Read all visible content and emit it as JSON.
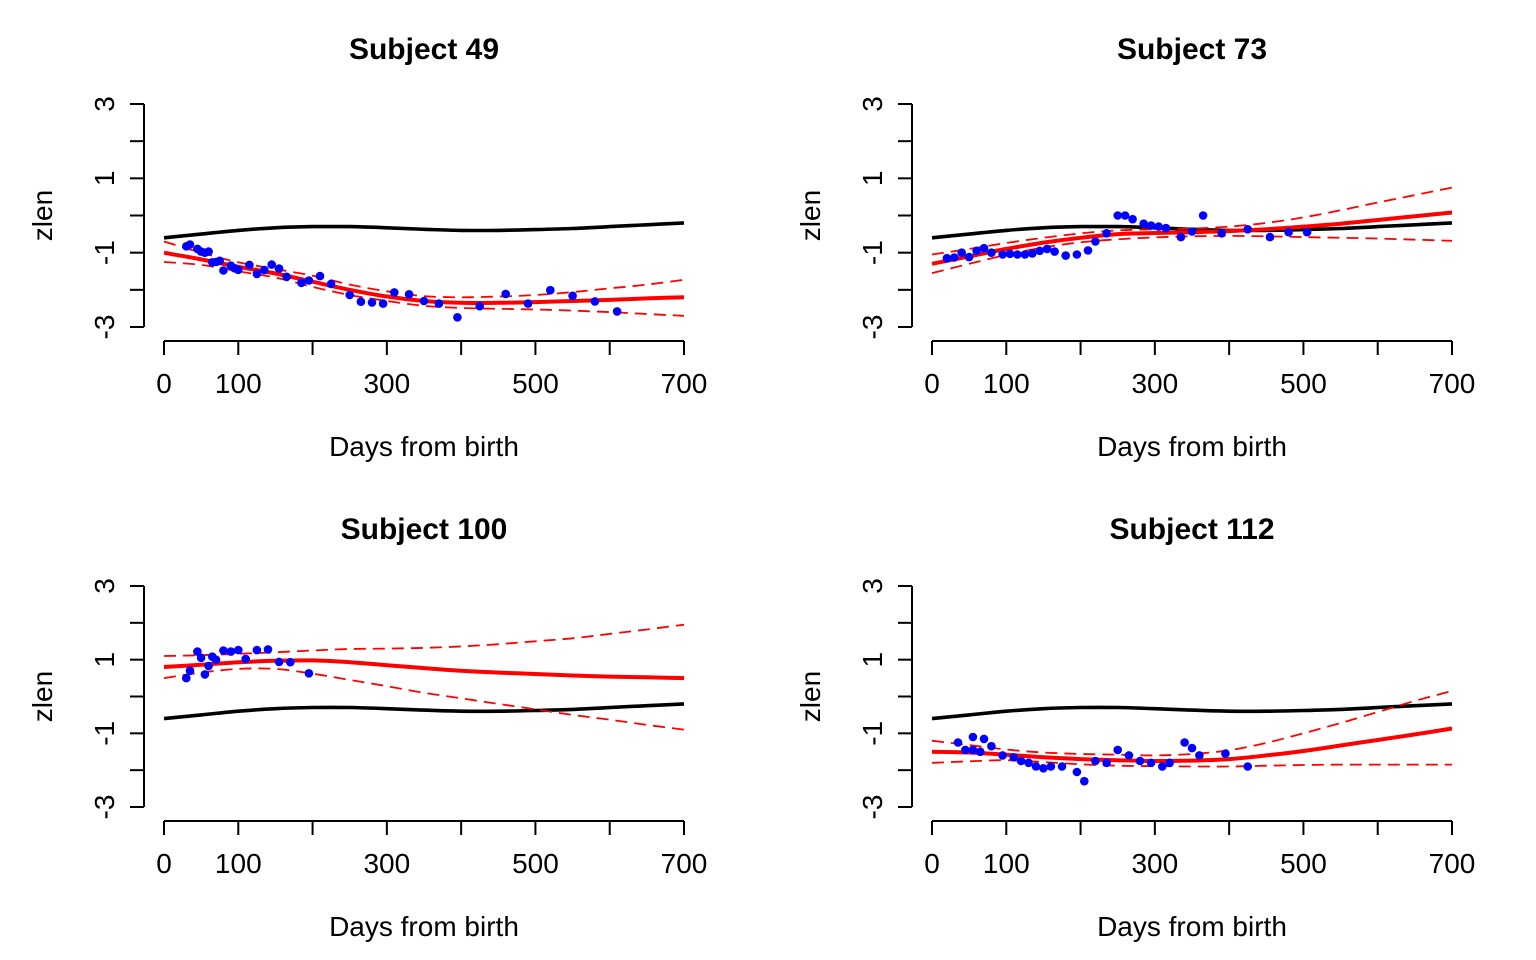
{
  "colors": {
    "reference": "#000000",
    "fit": "#ff0000",
    "band": "#ff0000",
    "points": "#0000ff"
  },
  "axes": {
    "xlabel": "Days from birth",
    "ylabel": "zlen",
    "xlim": [
      0,
      700
    ],
    "ylim": [
      -3,
      3
    ],
    "xticks": [
      0,
      100,
      200,
      300,
      400,
      500,
      600,
      700
    ],
    "xtick_labels": [
      "0",
      "100",
      "",
      "300",
      "",
      "500",
      "",
      "700"
    ],
    "yticks": [
      -3,
      -2,
      -1,
      0,
      1,
      2,
      3
    ],
    "ytick_labels": [
      "-3",
      "",
      "-1",
      "",
      "1",
      "",
      "3"
    ]
  },
  "chart_data": [
    {
      "type": "line",
      "title": "Subject  49",
      "xlabel": "Days from birth",
      "ylabel": "zlen",
      "xlim": [
        0,
        700
      ],
      "ylim": [
        -3,
        3
      ],
      "series": [
        {
          "role": "reference",
          "style": "black-solid",
          "x": [
            0,
            50,
            100,
            150,
            200,
            250,
            300,
            350,
            400,
            450,
            500,
            550,
            600,
            650,
            700
          ],
          "y": [
            -0.6,
            -0.5,
            -0.4,
            -0.33,
            -0.3,
            -0.3,
            -0.33,
            -0.37,
            -0.4,
            -0.4,
            -0.38,
            -0.35,
            -0.3,
            -0.25,
            -0.2
          ]
        },
        {
          "role": "fit",
          "style": "red-thick",
          "x": [
            0,
            50,
            100,
            150,
            200,
            250,
            300,
            350,
            400,
            450,
            500,
            550,
            600,
            650,
            700
          ],
          "y": [
            -1.0,
            -1.18,
            -1.38,
            -1.56,
            -1.78,
            -2.0,
            -2.18,
            -2.3,
            -2.35,
            -2.35,
            -2.33,
            -2.3,
            -2.27,
            -2.23,
            -2.2
          ]
        },
        {
          "role": "band-upper",
          "style": "red-dashed",
          "x": [
            0,
            50,
            100,
            150,
            200,
            250,
            300,
            350,
            400,
            450,
            500,
            550,
            600,
            650,
            700
          ],
          "y": [
            -0.7,
            -1.0,
            -1.26,
            -1.44,
            -1.62,
            -1.86,
            -2.04,
            -2.17,
            -2.2,
            -2.18,
            -2.14,
            -2.06,
            -1.96,
            -1.86,
            -1.73
          ]
        },
        {
          "role": "band-lower",
          "style": "red-dashed",
          "x": [
            0,
            50,
            100,
            150,
            200,
            250,
            300,
            350,
            400,
            450,
            500,
            550,
            600,
            650,
            700
          ],
          "y": [
            -1.25,
            -1.33,
            -1.5,
            -1.67,
            -1.92,
            -2.14,
            -2.3,
            -2.43,
            -2.49,
            -2.51,
            -2.53,
            -2.56,
            -2.6,
            -2.65,
            -2.7
          ]
        }
      ],
      "points": {
        "x": [
          30,
          35,
          45,
          50,
          55,
          60,
          65,
          70,
          75,
          80,
          90,
          95,
          100,
          115,
          125,
          135,
          145,
          155,
          165,
          185,
          195,
          210,
          225,
          250,
          265,
          280,
          295,
          310,
          330,
          350,
          370,
          395,
          425,
          460,
          490,
          520,
          550,
          580,
          610
        ],
        "y": [
          -0.83,
          -0.78,
          -0.9,
          -0.97,
          -1.0,
          -0.97,
          -1.26,
          -1.25,
          -1.22,
          -1.48,
          -1.35,
          -1.42,
          -1.46,
          -1.33,
          -1.57,
          -1.47,
          -1.32,
          -1.43,
          -1.65,
          -1.81,
          -1.75,
          -1.63,
          -1.84,
          -2.14,
          -2.32,
          -2.34,
          -2.37,
          -2.07,
          -2.12,
          -2.3,
          -2.37,
          -2.74,
          -2.44,
          -2.11,
          -2.37,
          -2.01,
          -2.16,
          -2.31,
          -2.58
        ]
      }
    },
    {
      "type": "line",
      "title": "Subject  73",
      "xlabel": "Days from birth",
      "ylabel": "zlen",
      "xlim": [
        0,
        700
      ],
      "ylim": [
        -3,
        3
      ],
      "series": [
        {
          "role": "reference",
          "style": "black-solid",
          "x": [
            0,
            50,
            100,
            150,
            200,
            250,
            300,
            350,
            400,
            450,
            500,
            550,
            600,
            650,
            700
          ],
          "y": [
            -0.6,
            -0.5,
            -0.4,
            -0.33,
            -0.3,
            -0.3,
            -0.33,
            -0.37,
            -0.4,
            -0.4,
            -0.38,
            -0.35,
            -0.3,
            -0.25,
            -0.2
          ]
        },
        {
          "role": "fit",
          "style": "red-thick",
          "x": [
            0,
            50,
            100,
            150,
            200,
            250,
            300,
            350,
            400,
            450,
            500,
            550,
            600,
            650,
            700
          ],
          "y": [
            -1.3,
            -1.1,
            -0.9,
            -0.73,
            -0.6,
            -0.5,
            -0.47,
            -0.45,
            -0.42,
            -0.37,
            -0.3,
            -0.22,
            -0.12,
            -0.02,
            0.08
          ]
        },
        {
          "role": "band-upper",
          "style": "red-dashed",
          "x": [
            0,
            50,
            100,
            150,
            200,
            250,
            300,
            350,
            400,
            450,
            500,
            550,
            600,
            650,
            700
          ],
          "y": [
            -1.05,
            -0.9,
            -0.74,
            -0.6,
            -0.48,
            -0.4,
            -0.37,
            -0.35,
            -0.3,
            -0.2,
            -0.05,
            0.14,
            0.35,
            0.55,
            0.75
          ]
        },
        {
          "role": "band-lower",
          "style": "red-dashed",
          "x": [
            0,
            50,
            100,
            150,
            200,
            250,
            300,
            350,
            400,
            450,
            500,
            550,
            600,
            650,
            700
          ],
          "y": [
            -1.55,
            -1.3,
            -1.06,
            -0.86,
            -0.72,
            -0.64,
            -0.59,
            -0.56,
            -0.55,
            -0.56,
            -0.58,
            -0.6,
            -0.62,
            -0.65,
            -0.68
          ]
        }
      ],
      "points": {
        "x": [
          20,
          30,
          40,
          50,
          60,
          70,
          80,
          95,
          105,
          115,
          125,
          135,
          145,
          155,
          165,
          180,
          195,
          210,
          220,
          235,
          250,
          260,
          270,
          285,
          295,
          305,
          315,
          335,
          350,
          365,
          390,
          425,
          455,
          480,
          505
        ],
        "y": [
          -1.15,
          -1.13,
          -1.0,
          -1.12,
          -0.95,
          -0.88,
          -1.0,
          -1.05,
          -1.03,
          -1.05,
          -1.05,
          -1.02,
          -0.95,
          -0.9,
          -0.97,
          -1.08,
          -1.05,
          -0.94,
          -0.7,
          -0.48,
          0.0,
          0.0,
          -0.1,
          -0.22,
          -0.27,
          -0.3,
          -0.34,
          -0.58,
          -0.43,
          0.0,
          -0.48,
          -0.37,
          -0.58,
          -0.45,
          -0.45
        ]
      }
    },
    {
      "type": "line",
      "title": "Subject  100",
      "xlabel": "Days from birth",
      "ylabel": "zlen",
      "xlim": [
        0,
        700
      ],
      "ylim": [
        -3,
        3
      ],
      "series": [
        {
          "role": "reference",
          "style": "black-solid",
          "x": [
            0,
            50,
            100,
            150,
            200,
            250,
            300,
            350,
            400,
            450,
            500,
            550,
            600,
            650,
            700
          ],
          "y": [
            -0.6,
            -0.5,
            -0.4,
            -0.33,
            -0.3,
            -0.3,
            -0.33,
            -0.37,
            -0.4,
            -0.4,
            -0.38,
            -0.35,
            -0.3,
            -0.25,
            -0.2
          ]
        },
        {
          "role": "fit",
          "style": "red-thick",
          "x": [
            0,
            50,
            100,
            150,
            200,
            250,
            300,
            350,
            400,
            450,
            500,
            550,
            600,
            650,
            700
          ],
          "y": [
            0.8,
            0.86,
            0.93,
            0.97,
            0.98,
            0.93,
            0.85,
            0.77,
            0.7,
            0.65,
            0.61,
            0.57,
            0.54,
            0.52,
            0.5
          ]
        },
        {
          "role": "band-upper",
          "style": "red-dashed",
          "x": [
            0,
            50,
            100,
            150,
            200,
            250,
            300,
            350,
            400,
            450,
            500,
            550,
            600,
            650,
            700
          ],
          "y": [
            1.1,
            1.12,
            1.16,
            1.2,
            1.25,
            1.29,
            1.3,
            1.32,
            1.36,
            1.42,
            1.5,
            1.58,
            1.7,
            1.82,
            1.95
          ]
        },
        {
          "role": "band-lower",
          "style": "red-dashed",
          "x": [
            0,
            50,
            100,
            150,
            200,
            250,
            300,
            350,
            400,
            450,
            500,
            550,
            600,
            650,
            700
          ],
          "y": [
            0.5,
            0.65,
            0.75,
            0.75,
            0.62,
            0.45,
            0.28,
            0.1,
            -0.05,
            -0.2,
            -0.35,
            -0.5,
            -0.63,
            -0.77,
            -0.9
          ]
        }
      ],
      "points": {
        "x": [
          30,
          35,
          45,
          50,
          55,
          60,
          65,
          70,
          80,
          90,
          100,
          110,
          125,
          140,
          155,
          170,
          195
        ],
        "y": [
          0.5,
          0.7,
          1.22,
          1.05,
          0.6,
          0.83,
          1.08,
          1.0,
          1.25,
          1.22,
          1.26,
          1.02,
          1.26,
          1.28,
          0.94,
          0.93,
          0.63
        ]
      }
    },
    {
      "type": "line",
      "title": "Subject  112",
      "xlabel": "Days from birth",
      "ylabel": "zlen",
      "xlim": [
        0,
        700
      ],
      "ylim": [
        -3,
        3
      ],
      "series": [
        {
          "role": "reference",
          "style": "black-solid",
          "x": [
            0,
            50,
            100,
            150,
            200,
            250,
            300,
            350,
            400,
            450,
            500,
            550,
            600,
            650,
            700
          ],
          "y": [
            -0.6,
            -0.5,
            -0.4,
            -0.33,
            -0.3,
            -0.3,
            -0.33,
            -0.37,
            -0.4,
            -0.4,
            -0.38,
            -0.35,
            -0.3,
            -0.25,
            -0.2
          ]
        },
        {
          "role": "fit",
          "style": "red-thick",
          "x": [
            0,
            50,
            100,
            150,
            200,
            250,
            300,
            350,
            400,
            450,
            500,
            550,
            600,
            650,
            700
          ],
          "y": [
            -1.5,
            -1.52,
            -1.58,
            -1.65,
            -1.7,
            -1.73,
            -1.75,
            -1.74,
            -1.7,
            -1.6,
            -1.48,
            -1.33,
            -1.18,
            -1.03,
            -0.87
          ]
        },
        {
          "role": "band-upper",
          "style": "red-dashed",
          "x": [
            0,
            50,
            100,
            150,
            200,
            250,
            300,
            350,
            400,
            450,
            500,
            550,
            600,
            650,
            700
          ],
          "y": [
            -1.2,
            -1.32,
            -1.44,
            -1.52,
            -1.56,
            -1.58,
            -1.6,
            -1.56,
            -1.46,
            -1.26,
            -1.0,
            -0.72,
            -0.42,
            -0.12,
            0.15
          ]
        },
        {
          "role": "band-lower",
          "style": "red-dashed",
          "x": [
            0,
            50,
            100,
            150,
            200,
            250,
            300,
            350,
            400,
            450,
            500,
            550,
            600,
            650,
            700
          ],
          "y": [
            -1.8,
            -1.76,
            -1.73,
            -1.78,
            -1.84,
            -1.88,
            -1.89,
            -1.9,
            -1.9,
            -1.88,
            -1.86,
            -1.85,
            -1.85,
            -1.85,
            -1.85
          ]
        }
      ],
      "points": {
        "x": [
          35,
          45,
          55,
          55,
          65,
          70,
          80,
          95,
          110,
          120,
          130,
          140,
          150,
          160,
          175,
          195,
          205,
          220,
          235,
          250,
          265,
          280,
          295,
          310,
          320,
          340,
          350,
          360,
          395,
          425
        ],
        "y": [
          -1.25,
          -1.45,
          -1.1,
          -1.45,
          -1.5,
          -1.15,
          -1.35,
          -1.6,
          -1.65,
          -1.75,
          -1.8,
          -1.9,
          -1.95,
          -1.9,
          -1.9,
          -2.05,
          -2.3,
          -1.75,
          -1.8,
          -1.45,
          -1.6,
          -1.75,
          -1.8,
          -1.9,
          -1.8,
          -1.25,
          -1.4,
          -1.6,
          -1.55,
          -1.9
        ]
      }
    }
  ]
}
